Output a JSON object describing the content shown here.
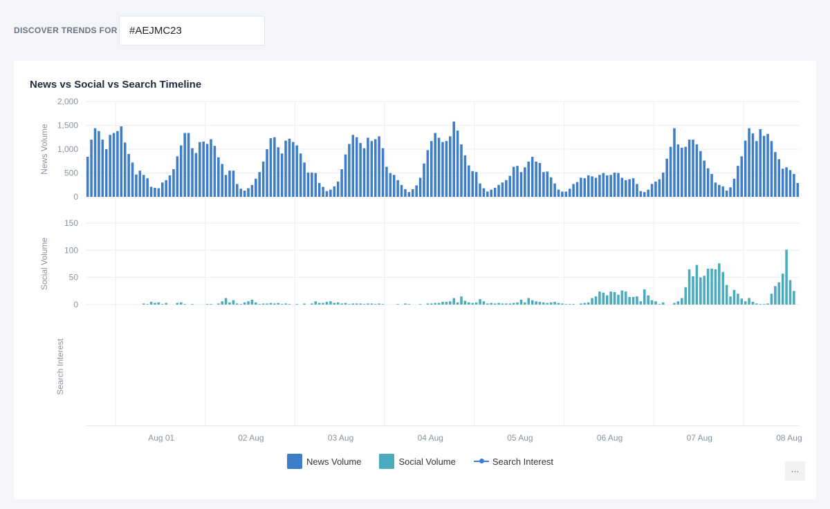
{
  "header": {
    "discover_label": "DISCOVER TRENDS FOR",
    "search_value": "#AEJMC23"
  },
  "card": {
    "title": "News vs Social vs Search Timeline",
    "more_label": "···"
  },
  "legend": [
    {
      "label": "News Volume",
      "color": "#3e7ec8"
    },
    {
      "label": "Social Volume",
      "color": "#4aabbd"
    },
    {
      "label": "Search Interest",
      "color": "#3d7cd6"
    }
  ],
  "chart_data": {
    "type": "bar",
    "title": "News vs Social vs Search Timeline",
    "xlabel": "",
    "bar_interval": "hourly",
    "bars_before_first_tick": 8,
    "bars_per_tick": 24,
    "x_ticks": [
      "Aug 01",
      "02 Aug",
      "03 Aug",
      "04 Aug",
      "05 Aug",
      "06 Aug",
      "07 Aug",
      "08 Aug"
    ],
    "panels": [
      {
        "name": "News Volume",
        "ylabel": "News Volume",
        "color": "#3e7ec8",
        "ylim": [
          0,
          2000
        ],
        "y_ticks": [
          0,
          500,
          1000,
          1500,
          2000
        ],
        "y_tick_labels": [
          "0",
          "500",
          "1,000",
          "1,500",
          "2,000"
        ],
        "values": [
          840,
          1200,
          1440,
          1380,
          1200,
          1000,
          1300,
          1340,
          1380,
          1480,
          1140,
          900,
          720,
          470,
          550,
          460,
          390,
          210,
          190,
          180,
          300,
          350,
          450,
          580,
          850,
          1080,
          1340,
          1340,
          1020,
          920,
          1150,
          1160,
          1110,
          1210,
          1070,
          830,
          690,
          460,
          550,
          550,
          270,
          170,
          130,
          180,
          250,
          380,
          520,
          740,
          1000,
          1230,
          1250,
          1040,
          910,
          1180,
          1220,
          1150,
          1080,
          910,
          720,
          510,
          510,
          500,
          290,
          210,
          120,
          150,
          220,
          320,
          580,
          890,
          1110,
          1300,
          1250,
          1130,
          1020,
          1240,
          1170,
          1210,
          1270,
          1020,
          630,
          500,
          460,
          350,
          250,
          160,
          100,
          160,
          240,
          400,
          700,
          980,
          1170,
          1340,
          1240,
          1150,
          1170,
          1270,
          1580,
          1390,
          1100,
          870,
          660,
          540,
          520,
          280,
          180,
          110,
          150,
          190,
          250,
          300,
          350,
          440,
          630,
          650,
          520,
          620,
          740,
          840,
          740,
          710,
          520,
          530,
          410,
          280,
          150,
          110,
          110,
          170,
          270,
          310,
          400,
          390,
          450,
          430,
          400,
          460,
          500,
          450,
          460,
          510,
          500,
          400,
          350,
          370,
          390,
          270,
          120,
          100,
          150,
          270,
          320,
          370,
          510,
          800,
          1050,
          1440,
          1100,
          1030,
          1050,
          1200,
          1200,
          1100,
          960,
          760,
          600,
          480,
          300,
          250,
          220,
          130,
          200,
          380,
          650,
          850,
          1180,
          1440,
          1330,
          1170,
          1420,
          1280,
          1320,
          1170,
          940,
          790,
          590,
          620,
          560,
          480,
          290
        ]
      },
      {
        "name": "Social Volume",
        "ylabel": "Social Volume",
        "color": "#4aabbd",
        "ylim": [
          0,
          150
        ],
        "y_ticks": [
          0,
          50,
          100,
          150
        ],
        "y_tick_labels": [
          "0",
          "50",
          "100",
          "150"
        ],
        "values": [
          0,
          0,
          0,
          0,
          0,
          0,
          0,
          0,
          0,
          0,
          0,
          0,
          0,
          0,
          0,
          2,
          1,
          5,
          3,
          4,
          1,
          3,
          0,
          0,
          3,
          4,
          1,
          0,
          1,
          0,
          0,
          0,
          1,
          1,
          0,
          2,
          6,
          12,
          4,
          8,
          2,
          1,
          4,
          6,
          9,
          4,
          1,
          2,
          2,
          3,
          2,
          3,
          1,
          2,
          1,
          0,
          1,
          0,
          2,
          0,
          2,
          6,
          3,
          3,
          5,
          6,
          3,
          4,
          2,
          3,
          1,
          2,
          2,
          2,
          1,
          2,
          2,
          1,
          2,
          1,
          0,
          0,
          0,
          1,
          0,
          2,
          1,
          0,
          0,
          1,
          0,
          2,
          2,
          3,
          3,
          5,
          5,
          6,
          12,
          4,
          15,
          7,
          4,
          3,
          4,
          10,
          6,
          2,
          3,
          2,
          3,
          2,
          2,
          2,
          3,
          4,
          9,
          4,
          12,
          8,
          6,
          5,
          4,
          3,
          4,
          5,
          3,
          2,
          1,
          1,
          1,
          0,
          2,
          3,
          4,
          12,
          15,
          24,
          22,
          17,
          24,
          23,
          18,
          26,
          24,
          14,
          14,
          15,
          6,
          28,
          17,
          8,
          6,
          1,
          4,
          0,
          0,
          3,
          6,
          12,
          32,
          65,
          52,
          73,
          50,
          53,
          66,
          66,
          65,
          76,
          60,
          36,
          15,
          27,
          20,
          11,
          6,
          12,
          5,
          2,
          1,
          1,
          2,
          20,
          34,
          41,
          57,
          101,
          45,
          25
        ]
      },
      {
        "name": "Search Interest",
        "ylabel": "Search Interest",
        "color": "#3d7cd6",
        "values": []
      }
    ]
  }
}
